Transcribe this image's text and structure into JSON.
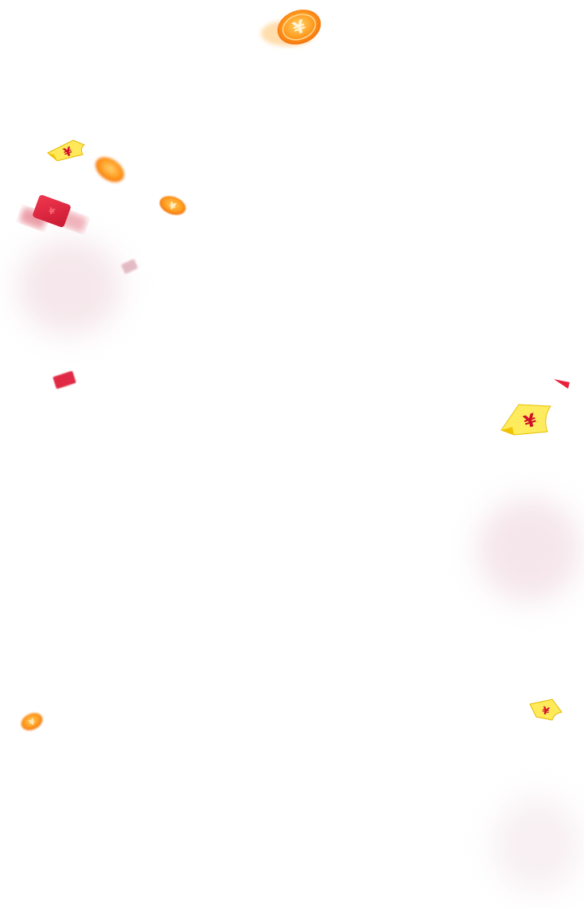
{
  "scene": {
    "description_free": true,
    "symbol": "¥",
    "colors": {
      "coin_light": "#ffc24d",
      "coin_mid": "#ff9a1f",
      "coin_dark": "#f46a0b",
      "envelope": "#e4263f",
      "envelope_dark": "#c41630",
      "note": "#ffe95a",
      "note_dark": "#f2c500",
      "note_text": "#d0102a",
      "haze": "#f4dde2",
      "background": "#ffffff"
    }
  }
}
